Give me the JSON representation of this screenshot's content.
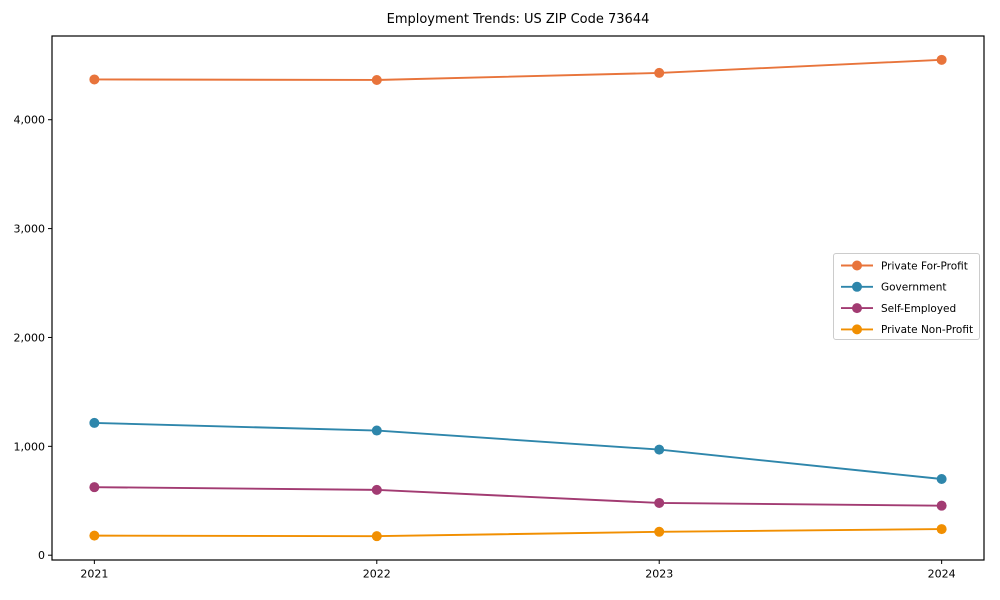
{
  "chart_data": {
    "type": "line",
    "title": "Employment Trends: US ZIP Code 73644",
    "xlabel": "",
    "ylabel": "",
    "x": [
      2021,
      2022,
      2023,
      2024
    ],
    "x_tick_labels": [
      "2021",
      "2022",
      "2023",
      "2024"
    ],
    "series": [
      {
        "name": "Private For-Profit",
        "color": "#E8743B",
        "values": [
          4370,
          4365,
          4430,
          4550
        ]
      },
      {
        "name": "Government",
        "color": "#2E86AB",
        "values": [
          1215,
          1145,
          970,
          700
        ]
      },
      {
        "name": "Self-Employed",
        "color": "#A23B72",
        "values": [
          625,
          600,
          480,
          455
        ]
      },
      {
        "name": "Private Non-Profit",
        "color": "#F18F01",
        "values": [
          180,
          175,
          215,
          240
        ]
      }
    ],
    "yticks": [
      0,
      1000,
      2000,
      3000,
      4000
    ],
    "ytick_labels": [
      "0",
      "1,000",
      "2,000",
      "3,000",
      "4,000"
    ],
    "xlim": [
      2020.85,
      2024.15
    ],
    "ylim": [
      -44,
      4769
    ],
    "grid": false,
    "legend": {
      "position": "center right",
      "entries": [
        "Private For-Profit",
        "Government",
        "Self-Employed",
        "Private Non-Profit"
      ]
    }
  },
  "colors": {
    "background": "#ffffff",
    "axis": "#000000",
    "tick_label": "#000000",
    "legend_border": "#cccccc",
    "legend_background": "#ffffff"
  }
}
